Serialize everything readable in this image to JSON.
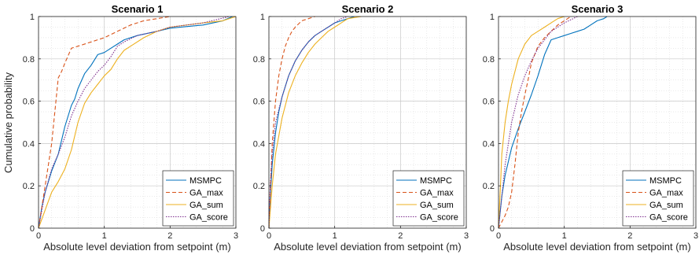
{
  "figure": {
    "ylabel": "Cumulative probability"
  },
  "styles": {
    "MSMPC": {
      "color": "#0072BD",
      "dash": ""
    },
    "GA_max": {
      "color": "#D95319",
      "dash": "5,3"
    },
    "GA_sum": {
      "color": "#EDB120",
      "dash": ""
    },
    "GA_score": {
      "color": "#7E2F8E",
      "dash": "1.5,1.5"
    }
  },
  "chart_data": [
    {
      "type": "line",
      "title": "Scenario 1",
      "xlabel": "Absolute level deviation from setpoint (m)",
      "ylabel": "Cumulative probability",
      "xlim": [
        0,
        3
      ],
      "ylim": [
        0,
        1
      ],
      "xticks": [
        0,
        1,
        2,
        3
      ],
      "yticks": [
        0,
        0.2,
        0.4,
        0.6,
        0.8,
        1
      ],
      "grid": true,
      "legend_position": "bottom-right",
      "series": [
        {
          "name": "MSMPC",
          "x": [
            0,
            0.05,
            0.1,
            0.2,
            0.3,
            0.4,
            0.5,
            0.55,
            0.6,
            0.7,
            0.8,
            0.9,
            1.0,
            1.1,
            1.2,
            1.3,
            1.5,
            1.8,
            2.0,
            2.5,
            2.8,
            2.95
          ],
          "y": [
            0,
            0.1,
            0.17,
            0.27,
            0.35,
            0.48,
            0.58,
            0.61,
            0.66,
            0.73,
            0.77,
            0.82,
            0.83,
            0.85,
            0.87,
            0.89,
            0.91,
            0.93,
            0.945,
            0.96,
            0.98,
            1.0
          ]
        },
        {
          "name": "GA_max",
          "x": [
            0,
            0.1,
            0.2,
            0.3,
            0.35,
            0.4,
            0.5,
            0.6,
            0.8,
            1.0,
            1.2,
            1.4,
            1.6,
            1.8,
            2.0
          ],
          "y": [
            0,
            0.2,
            0.4,
            0.71,
            0.74,
            0.78,
            0.85,
            0.86,
            0.88,
            0.9,
            0.93,
            0.96,
            0.98,
            0.99,
            1.0
          ]
        },
        {
          "name": "GA_sum",
          "x": [
            0,
            0.2,
            0.3,
            0.4,
            0.5,
            0.6,
            0.7,
            0.8,
            0.9,
            1.0,
            1.1,
            1.2,
            1.3,
            1.4,
            1.6,
            1.8,
            2.0,
            2.5,
            2.8,
            3.0
          ],
          "y": [
            0,
            0.17,
            0.22,
            0.28,
            0.37,
            0.5,
            0.59,
            0.64,
            0.68,
            0.72,
            0.75,
            0.8,
            0.84,
            0.86,
            0.9,
            0.93,
            0.95,
            0.97,
            0.98,
            1.0
          ]
        },
        {
          "name": "GA_score",
          "x": [
            0,
            0.1,
            0.2,
            0.3,
            0.4,
            0.5,
            0.6,
            0.7,
            0.8,
            0.9,
            1.0,
            1.1,
            1.2,
            1.3,
            1.5,
            1.8,
            2.0,
            2.5,
            2.9
          ],
          "y": [
            0,
            0.17,
            0.28,
            0.35,
            0.43,
            0.53,
            0.6,
            0.66,
            0.7,
            0.74,
            0.77,
            0.81,
            0.86,
            0.88,
            0.91,
            0.93,
            0.95,
            0.97,
            1.0
          ]
        }
      ]
    },
    {
      "type": "line",
      "title": "Scenario 2",
      "xlabel": "Absolute level deviation from setpoint (m)",
      "ylabel": "",
      "xlim": [
        0,
        3
      ],
      "ylim": [
        0,
        1
      ],
      "xticks": [
        0,
        1,
        2,
        3
      ],
      "yticks": [
        0,
        0.2,
        0.4,
        0.6,
        0.8,
        1
      ],
      "grid": true,
      "legend_position": "bottom-right",
      "series": [
        {
          "name": "MSMPC",
          "x": [
            0,
            0.02,
            0.05,
            0.1,
            0.15,
            0.2,
            0.3,
            0.4,
            0.5,
            0.6,
            0.7,
            0.8,
            0.9,
            1.0,
            1.1,
            1.2,
            1.3
          ],
          "y": [
            0,
            0.15,
            0.3,
            0.45,
            0.55,
            0.62,
            0.72,
            0.79,
            0.84,
            0.88,
            0.91,
            0.93,
            0.95,
            0.97,
            0.98,
            0.99,
            1.0
          ]
        },
        {
          "name": "GA_max",
          "x": [
            0,
            0.05,
            0.1,
            0.15,
            0.2,
            0.25,
            0.3,
            0.35,
            0.4,
            0.5,
            0.6,
            0.7
          ],
          "y": [
            0,
            0.4,
            0.6,
            0.72,
            0.8,
            0.86,
            0.9,
            0.93,
            0.95,
            0.98,
            0.99,
            1.0
          ]
        },
        {
          "name": "GA_sum",
          "x": [
            0,
            0.05,
            0.1,
            0.2,
            0.3,
            0.4,
            0.5,
            0.6,
            0.7,
            0.8,
            0.9,
            1.0,
            1.1,
            1.2,
            1.4
          ],
          "y": [
            0,
            0.2,
            0.35,
            0.52,
            0.64,
            0.72,
            0.78,
            0.83,
            0.87,
            0.9,
            0.93,
            0.95,
            0.97,
            0.99,
            1.0
          ]
        },
        {
          "name": "GA_score",
          "x": [
            0,
            0.02,
            0.05,
            0.1,
            0.2,
            0.3,
            0.4,
            0.5,
            0.6,
            0.7,
            0.8,
            0.9,
            1.0,
            1.1,
            1.2
          ],
          "y": [
            0,
            0.2,
            0.35,
            0.5,
            0.62,
            0.72,
            0.79,
            0.84,
            0.88,
            0.91,
            0.93,
            0.95,
            0.97,
            0.99,
            1.0
          ]
        }
      ]
    },
    {
      "type": "line",
      "title": "Scenario 3",
      "xlabel": "Absolute level deviation from setpoint (m)",
      "ylabel": "",
      "xlim": [
        0,
        3
      ],
      "ylim": [
        0,
        1
      ],
      "xticks": [
        0,
        1,
        2,
        3
      ],
      "yticks": [
        0,
        0.2,
        0.4,
        0.6,
        0.8,
        1
      ],
      "grid": true,
      "legend_position": "bottom-right",
      "series": [
        {
          "name": "MSMPC",
          "x": [
            0,
            0.05,
            0.1,
            0.2,
            0.3,
            0.4,
            0.5,
            0.6,
            0.7,
            0.8,
            0.9,
            1.0,
            1.1,
            1.2,
            1.3,
            1.4,
            1.5,
            1.6,
            1.65
          ],
          "y": [
            0,
            0.15,
            0.25,
            0.38,
            0.47,
            0.55,
            0.63,
            0.72,
            0.82,
            0.89,
            0.9,
            0.91,
            0.92,
            0.93,
            0.94,
            0.96,
            0.98,
            0.99,
            1.0
          ]
        },
        {
          "name": "GA_max",
          "x": [
            0,
            0.1,
            0.15,
            0.2,
            0.25,
            0.3,
            0.35,
            0.4,
            0.45,
            0.5,
            0.6,
            0.7,
            0.8,
            0.9,
            1.0,
            1.1
          ],
          "y": [
            0,
            0.06,
            0.1,
            0.17,
            0.3,
            0.45,
            0.55,
            0.63,
            0.7,
            0.78,
            0.86,
            0.9,
            0.93,
            0.96,
            0.98,
            1.0
          ]
        },
        {
          "name": "GA_sum",
          "x": [
            0,
            0.03,
            0.05,
            0.1,
            0.15,
            0.2,
            0.3,
            0.4,
            0.5,
            0.6,
            0.7,
            0.8,
            0.9,
            1.0
          ],
          "y": [
            0,
            0.2,
            0.35,
            0.5,
            0.6,
            0.68,
            0.8,
            0.87,
            0.91,
            0.93,
            0.95,
            0.97,
            0.99,
            1.0
          ]
        },
        {
          "name": "GA_score",
          "x": [
            0,
            0.05,
            0.1,
            0.2,
            0.3,
            0.4,
            0.5,
            0.6,
            0.7,
            0.8,
            0.9,
            1.0,
            1.2
          ],
          "y": [
            0,
            0.15,
            0.3,
            0.5,
            0.63,
            0.72,
            0.79,
            0.85,
            0.89,
            0.93,
            0.95,
            0.97,
            1.0
          ]
        }
      ]
    }
  ]
}
